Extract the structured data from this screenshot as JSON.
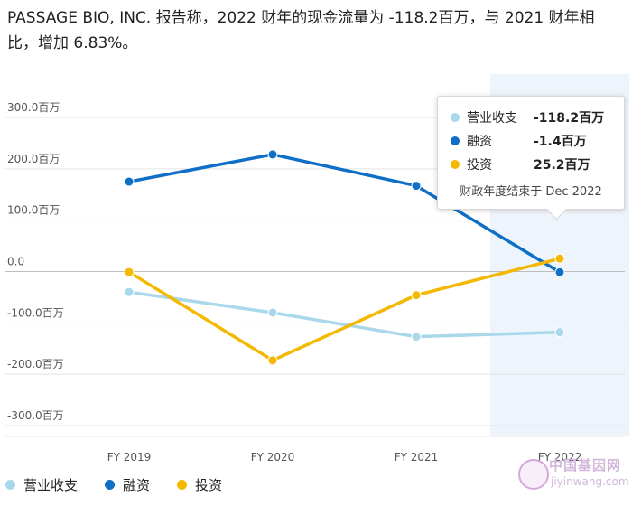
{
  "headline": "PASSAGE BIO, INC. 报告称，2022 财年的现金流量为 -118.2百万，与 2021 财年相比，增加 6.83%。",
  "chart_data": {
    "type": "line",
    "categories": [
      "FY 2019",
      "FY 2020",
      "FY 2021",
      "FY 2022"
    ],
    "series": [
      {
        "name": "营业收支",
        "color": "#a8d8ea",
        "values": [
          -40.0,
          -80.0,
          -127.0,
          -118.2
        ]
      },
      {
        "name": "融资",
        "color": "#0f6fc6",
        "values": [
          175.0,
          228.0,
          167.0,
          -1.4
        ]
      },
      {
        "name": "投资",
        "color": "#f5b800",
        "values": [
          -1.0,
          -173.0,
          -46.0,
          25.2
        ]
      }
    ],
    "ylim": [
      -300,
      300
    ],
    "yticks": [
      300,
      200,
      100,
      0,
      -100,
      -200,
      -300
    ],
    "ytick_labels": [
      "300.0百万",
      "200.0百万",
      "100.0百万",
      "0.0",
      "-100.0百万",
      "-200.0百万",
      "-300.0百万"
    ],
    "highlight_category": "FY 2022",
    "grid": true,
    "legend_position": "bottom-left"
  },
  "tooltip": {
    "rows": [
      {
        "name": "营业收支",
        "value": "-118.2百万"
      },
      {
        "name": "融资",
        "value": "-1.4百万"
      },
      {
        "name": "投资",
        "value": "25.2百万"
      }
    ],
    "footer": "财政年度结束于 Dec 2022"
  },
  "watermark": {
    "cn": "中国基因网",
    "en": "jiyinwang.com"
  }
}
